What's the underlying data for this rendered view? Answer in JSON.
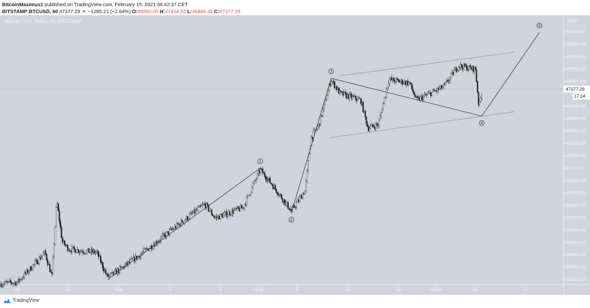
{
  "header": {
    "author": "BitcoinMaximus1",
    "published": "published on TradingView.com, February 15, 2021 08:42:37 CET",
    "symbol": "BITSTAMP:BTCUSD, 60",
    "last": "47377.29",
    "change": "−1285.21 (−2.64%)",
    "o_label": "O:",
    "o": "46890.00",
    "h_label": "H:",
    "h": "47434.53",
    "l_label": "L:",
    "l": "46880.48",
    "c_label": "C:",
    "c": "47377.29"
  },
  "pane_title": "Bitcoin / U.S. Dollar, 1h, BITSTAMP",
  "price_axis": {
    "currency": "USD",
    "labels": [
      "52000.00",
      "51000.00",
      "50000.00",
      "49000.00",
      "48000.00",
      "46000.00",
      "45000.00",
      "44000.00",
      "43000.00",
      "42000.00",
      "41000.00",
      "40000.00",
      "39000.00",
      "38000.00",
      "37000.00",
      "36000.00",
      "35000.00",
      "34000.00",
      "33000.00",
      "32000.00"
    ],
    "current_price": "47377.29",
    "countdown": "17:24"
  },
  "time_axis": {
    "ticks": [
      {
        "day": 0,
        "label": "28"
      },
      {
        "day": 2,
        "label": "30"
      },
      {
        "day": 4,
        "label": "Feb"
      },
      {
        "day": 6,
        "label": "3"
      },
      {
        "day": 8,
        "label": "5"
      },
      {
        "day": 9.5,
        "label": "12:00"
      },
      {
        "day": 11,
        "label": "8"
      },
      {
        "day": 13,
        "label": "10"
      },
      {
        "day": 15,
        "label": "12"
      },
      {
        "day": 16.5,
        "label": "12:00"
      },
      {
        "day": 18,
        "label": "15"
      },
      {
        "day": 20,
        "label": "17"
      }
    ]
  },
  "chart_data": {
    "type": "candlestick",
    "title": "Bitcoin / U.S. Dollar, 1h, BITSTAMP",
    "x_unit": "days since Jan 28",
    "price_path": [
      [
        -0.68,
        31660
      ],
      [
        0,
        31780
      ],
      [
        1.09,
        34180
      ],
      [
        1.36,
        32220
      ],
      [
        1.55,
        38370
      ],
      [
        1.77,
        35020
      ],
      [
        2.04,
        34460
      ],
      [
        3.13,
        34180
      ],
      [
        3.54,
        32220
      ],
      [
        3.81,
        32500
      ],
      [
        4.77,
        33900
      ],
      [
        6.15,
        36130
      ],
      [
        7.38,
        38090
      ],
      [
        7.79,
        36970
      ],
      [
        8.88,
        37810
      ],
      [
        9.56,
        40880
      ],
      [
        10.1,
        39490
      ],
      [
        10.79,
        37530
      ],
      [
        11.33,
        39210
      ],
      [
        11.55,
        43400
      ],
      [
        11.88,
        44510
      ],
      [
        12.35,
        48140
      ],
      [
        12.7,
        47030
      ],
      [
        13.52,
        46470
      ],
      [
        13.8,
        44230
      ],
      [
        14.21,
        44510
      ],
      [
        14.62,
        48140
      ],
      [
        15.44,
        47870
      ],
      [
        15.71,
        46470
      ],
      [
        16.8,
        47590
      ],
      [
        17.35,
        49260
      ],
      [
        18.03,
        48980
      ],
      [
        18.17,
        45910
      ],
      [
        18.31,
        47377
      ]
    ],
    "ylim": [
      31500,
      53000
    ],
    "colors": {
      "up": "#f2f3f5",
      "down": "#111111",
      "background": "#d1d4dc"
    },
    "elliott_waves": [
      {
        "label": "1",
        "day": 9.56,
        "price": 41000
      },
      {
        "label": "2",
        "day": 10.79,
        "price": 37400
      },
      {
        "label": "3",
        "day": 12.35,
        "price": 48250
      },
      {
        "label": "4",
        "day": 18.28,
        "price": 45200
      },
      {
        "label": "5",
        "day": 20.55,
        "price": 51950
      }
    ],
    "wave_start": {
      "day": 3.54,
      "price": 32000
    },
    "channel": {
      "upper": [
        [
          12.7,
          48450
        ],
        [
          19.55,
          50350
        ]
      ],
      "lower": [
        [
          12.3,
          43450
        ],
        [
          19.55,
          45550
        ]
      ]
    }
  },
  "footer": {
    "brand": "TradingView"
  }
}
